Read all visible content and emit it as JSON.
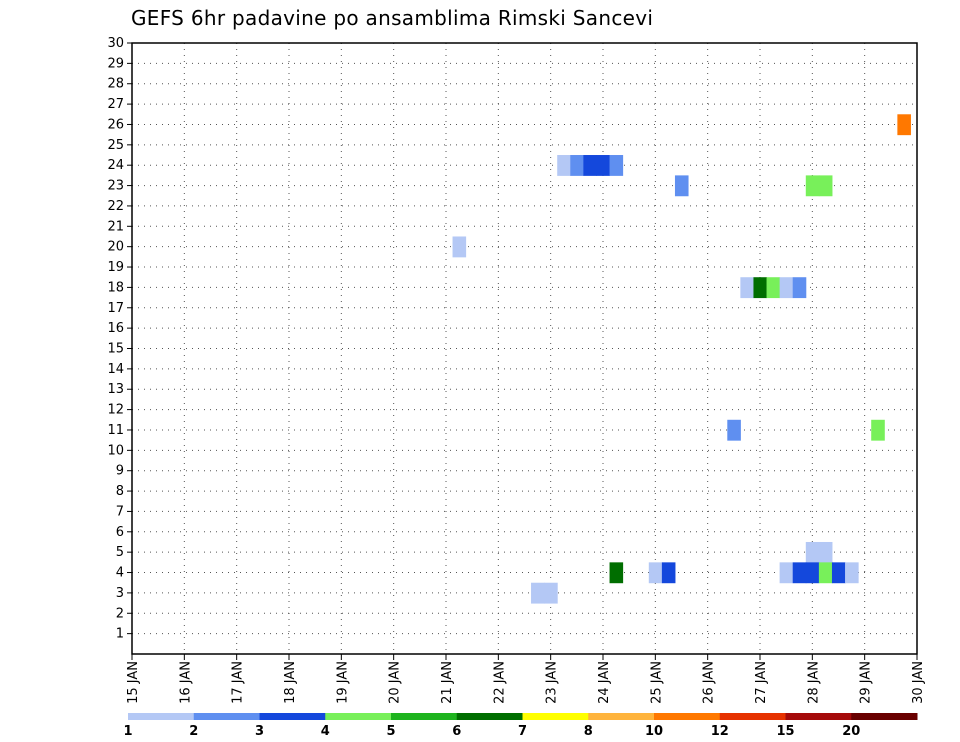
{
  "chart_data": {
    "type": "heatmap",
    "title": "GEFS 6hr padavine po ansamblima Rimski Sancevi",
    "xlabel": "",
    "ylabel": "",
    "ylim": [
      0,
      30
    ],
    "yticks": [
      "1",
      "2",
      "3",
      "4",
      "5",
      "6",
      "7",
      "8",
      "9",
      "10",
      "11",
      "12",
      "13",
      "14",
      "15",
      "16",
      "17",
      "18",
      "19",
      "20",
      "21",
      "22",
      "23",
      "24",
      "25",
      "26",
      "27",
      "28",
      "29",
      "30"
    ],
    "xlim": [
      0,
      15
    ],
    "xticks": [
      "15 JAN",
      "16 JAN",
      "17 JAN",
      "18 JAN",
      "19 JAN",
      "20 JAN",
      "21 JAN",
      "22 JAN",
      "23 JAN",
      "24 JAN",
      "25 JAN",
      "26 JAN",
      "27 JAN",
      "28 JAN",
      "29 JAN",
      "30 JAN"
    ],
    "grid": true,
    "colorbar": {
      "labels": [
        "1",
        "2",
        "3",
        "4",
        "5",
        "6",
        "7",
        "8",
        "10",
        "12",
        "15",
        "20"
      ],
      "colors": [
        "#b4c8f5",
        "#5f8ff0",
        "#1448dc",
        "#78f05a",
        "#1eb41e",
        "#006e00",
        "#ffff00",
        "#ffb43c",
        "#ff7800",
        "#e63200",
        "#a50a0a",
        "#690000"
      ]
    },
    "cells": [
      {
        "day": 8.25,
        "member": 24,
        "value": 1
      },
      {
        "day": 8.5,
        "member": 24,
        "value": 2
      },
      {
        "day": 8.75,
        "member": 24,
        "value": 3
      },
      {
        "day": 9.0,
        "member": 24,
        "value": 3
      },
      {
        "day": 9.25,
        "member": 24,
        "value": 2
      },
      {
        "day": 10.5,
        "member": 23,
        "value": 2
      },
      {
        "day": 13.0,
        "member": 23,
        "value": 4
      },
      {
        "day": 13.25,
        "member": 23,
        "value": 4
      },
      {
        "day": 14.75,
        "member": 26,
        "value": 10
      },
      {
        "day": 6.25,
        "member": 20,
        "value": 1
      },
      {
        "day": 11.75,
        "member": 18,
        "value": 1
      },
      {
        "day": 12.0,
        "member": 18,
        "value": 6
      },
      {
        "day": 12.25,
        "member": 18,
        "value": 4
      },
      {
        "day": 12.5,
        "member": 18,
        "value": 1
      },
      {
        "day": 12.75,
        "member": 18,
        "value": 2
      },
      {
        "day": 11.5,
        "member": 11,
        "value": 2
      },
      {
        "day": 14.25,
        "member": 11,
        "value": 4
      },
      {
        "day": 7.75,
        "member": 3,
        "value": 1
      },
      {
        "day": 8.0,
        "member": 3,
        "value": 1
      },
      {
        "day": 9.25,
        "member": 4,
        "value": 6
      },
      {
        "day": 10.0,
        "member": 4,
        "value": 1
      },
      {
        "day": 10.25,
        "member": 4,
        "value": 3
      },
      {
        "day": 12.5,
        "member": 4,
        "value": 1
      },
      {
        "day": 13.0,
        "member": 5,
        "value": 1
      },
      {
        "day": 13.25,
        "member": 5,
        "value": 1
      },
      {
        "day": 12.75,
        "member": 4,
        "value": 3
      },
      {
        "day": 13.0,
        "member": 4,
        "value": 3
      },
      {
        "day": 13.25,
        "member": 4,
        "value": 4
      },
      {
        "day": 13.5,
        "member": 4,
        "value": 3
      },
      {
        "day": 13.75,
        "member": 4,
        "value": 1
      }
    ]
  }
}
